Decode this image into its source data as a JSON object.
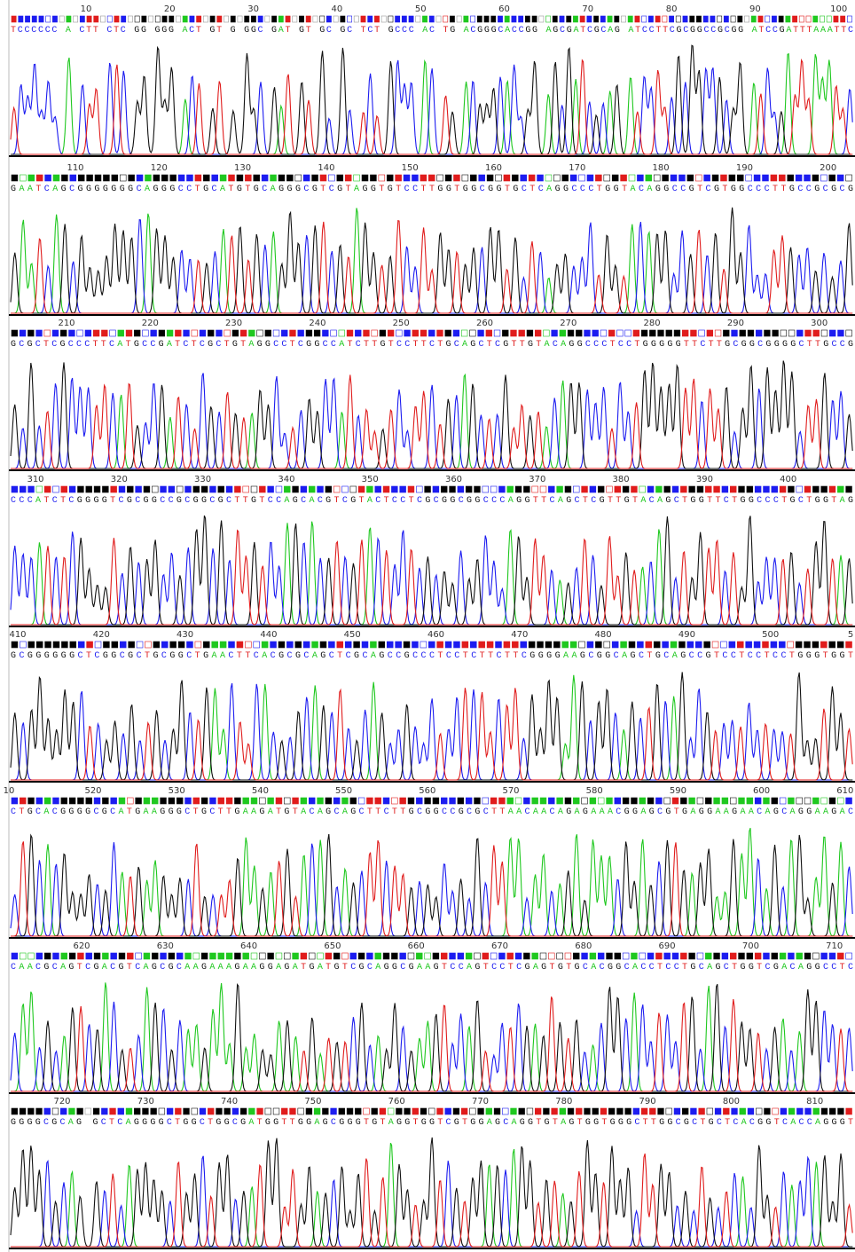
{
  "rows": [
    {
      "ruler": [
        10,
        20,
        30,
        40,
        50,
        60,
        70,
        80,
        90,
        100
      ],
      "sequence": "TCCCCCC A CTT CTC GG GGG ACT GT G GGC GAT GT GC GC TCT GCCC AC TG ACGGGCACCGG AGCGATCGCAG ATCCTTCGCGGCCGCGG ATCCGATTTAAATTC"
    },
    {
      "ruler": [
        110,
        120,
        130,
        140,
        150,
        160,
        170,
        180,
        190,
        200
      ],
      "sequence": "GAATCAGCGGGGGGGCAGGGCCTGCATGTGCAGGGCGTCGTAGGTGTCCTTGGTGGCGGTGCTCAGGCCCTGGTACAGGCCGTCGTGGCCCTTGCCGCGCG"
    },
    {
      "ruler": [
        210,
        220,
        230,
        240,
        250,
        260,
        270,
        280,
        290,
        300
      ],
      "sequence": "GCGCTCGCCCTTCATGCCGATCTCGCTGTAGGCCTCGGCCATCTTGTCCTTCTGCAGCTCGTTGTACAGGCCCTCCTGGGGGTTCTTGCGGCGGGGCTTGCCG"
    },
    {
      "ruler": [
        310,
        320,
        330,
        340,
        350,
        360,
        370,
        380,
        390,
        400
      ],
      "sequence": "CCCATCTCGGGGTCGCGGCCGCGGCGCTTGTCCAGCACGTCGTACTCCTCGCGGCGGCCCAGGTTCAGCTCGTTGTACAGCTGGTTCTGGCCCTGCTGGTAG"
    },
    {
      "ruler": [
        410,
        420,
        430,
        440,
        450,
        460,
        470,
        480,
        490,
        500,
        5
      ],
      "sequence": "GCGGGGGGCTCGGCGCTGCGGCTGAACTTCACGCGCAGCTCGCAGCCGCCCTCCTCTTCTTCGGGGAAGCGGCAGCTGCAGCCGTCCTCCTCCTGGGTGGT"
    },
    {
      "ruler": [
        10,
        520,
        530,
        540,
        550,
        560,
        570,
        580,
        590,
        600,
        610
      ],
      "sequence": "CTGCACGGGGCGCATGAAGGGCTGCTTGAAGATGTACAGCAGCTTCTTGCGGCCGCGCTTAACAACAGAGAAACGGAGCGTGAGGAAGAACAGCAGGAAGAC"
    },
    {
      "ruler": [
        620,
        630,
        640,
        650,
        660,
        670,
        680,
        690,
        700,
        710
      ],
      "sequence": "CAACGCAGTCGACGTCAGCGCAAGAAAGAAGGAGATGATGTCGCAGGCGAAGTCCAGTCCTCGAGTGTGCACGGCACCTCCTGCAGCTGGTCGACAGGCCTC"
    },
    {
      "ruler": [
        720,
        730,
        740,
        750,
        760,
        770,
        780,
        790,
        800,
        810
      ],
      "sequence": "GGGGCGCAG GCTCAGGGGCTGGCTGGCGATGGTTGGAGCGGGTGTAGGTGGTCGTGGAGCAGGTGTAGTGGTGGGCTTGGCGCTGCTCACGGTCACCAGGGT"
    }
  ]
}
